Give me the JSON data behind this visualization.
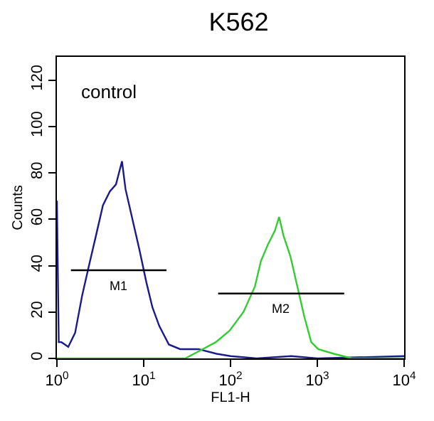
{
  "chart_data": {
    "type": "line",
    "title": "K562",
    "xlabel": "FL1-H",
    "ylabel": "Counts",
    "log": "x",
    "xlim": [
      1,
      10000
    ],
    "ylim": [
      0,
      130
    ],
    "xticks": [
      {
        "value": 1,
        "label": "10$^{0}$"
      },
      {
        "value": 10,
        "label": "10$^{1}$"
      },
      {
        "value": 100,
        "label": "10$^{2}$"
      },
      {
        "value": 1000,
        "label": "10$^{3}$"
      },
      {
        "value": 10000,
        "label": "10$^{4}$"
      }
    ],
    "yticks": [
      0,
      20,
      40,
      60,
      80,
      100,
      120
    ],
    "marker": "none",
    "line_style": "solid",
    "series": [
      {
        "color": "#1a1a8c",
        "x": [
          1,
          1.05,
          1.13,
          1.35,
          1.62,
          1.95,
          2.34,
          2.82,
          3.39,
          4.07,
          4.79,
          5.62,
          6.17,
          7.41,
          8.91,
          10.7,
          12.6,
          15.1,
          19.5,
          26.3,
          42.7,
          69.2,
          100,
          200,
          500,
          1000,
          10000
        ],
        "values": [
          68,
          7,
          7,
          5,
          11,
          27,
          40,
          53,
          66,
          72,
          75,
          85,
          73,
          60,
          47,
          33,
          22,
          14,
          6,
          4,
          4,
          2,
          1,
          0,
          1,
          0,
          1
        ]
      },
      {
        "color": "#33cc33",
        "x": [
          1,
          30,
          47.9,
          67.6,
          97.7,
          141,
          191,
          224,
          269,
          324,
          363,
          407,
          490,
          589,
          708,
          851,
          1023,
          1549,
          2512,
          10000
        ],
        "values": [
          0,
          0,
          4,
          7,
          12,
          20,
          31,
          42,
          49,
          55,
          61,
          53,
          44,
          31,
          18,
          7,
          4,
          2,
          0,
          0
        ]
      },
      {
        "color": "#000000",
        "x": [
          1.45,
          18.3
        ],
        "values": [
          38,
          38
        ]
      },
      {
        "color": "#000000",
        "x": [
          72,
          2040
        ],
        "values": [
          28,
          28
        ]
      }
    ],
    "annotations": [
      "control",
      "M1",
      "M2"
    ]
  }
}
